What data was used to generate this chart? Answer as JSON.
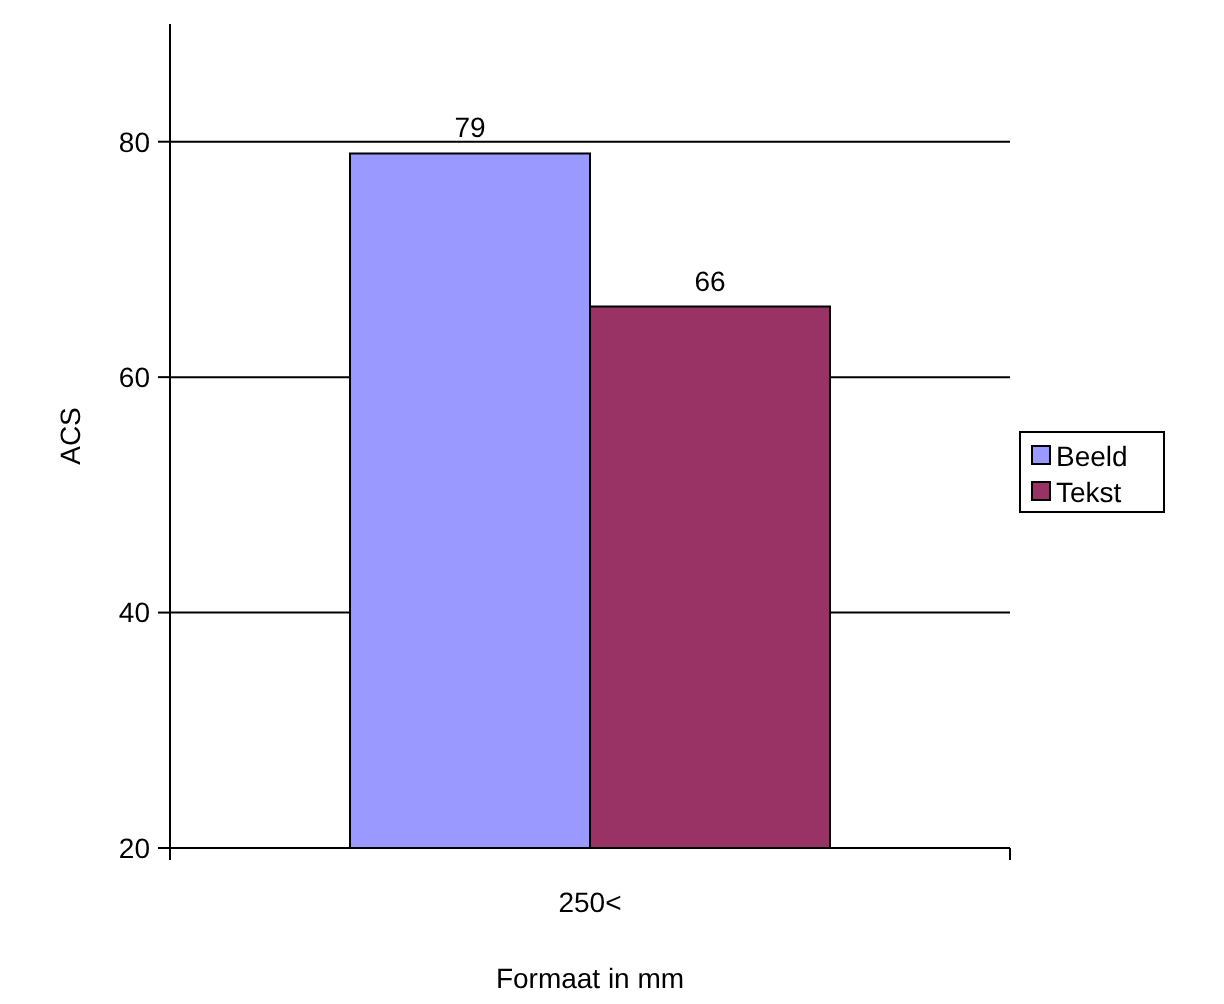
{
  "chart_data": {
    "type": "bar",
    "xlabel": "Formaat in mm",
    "ylabel": "ACS",
    "categories": [
      "250<"
    ],
    "series": [
      {
        "name": "Beeld",
        "color": "#9999ff",
        "values": [
          79
        ]
      },
      {
        "name": "Tekst",
        "color": "#993366",
        "values": [
          66
        ]
      }
    ],
    "ylim": [
      20,
      90
    ],
    "yticks": [
      20,
      40,
      60,
      80
    ],
    "grid": "y",
    "legend": "right",
    "data_labels": true
  }
}
